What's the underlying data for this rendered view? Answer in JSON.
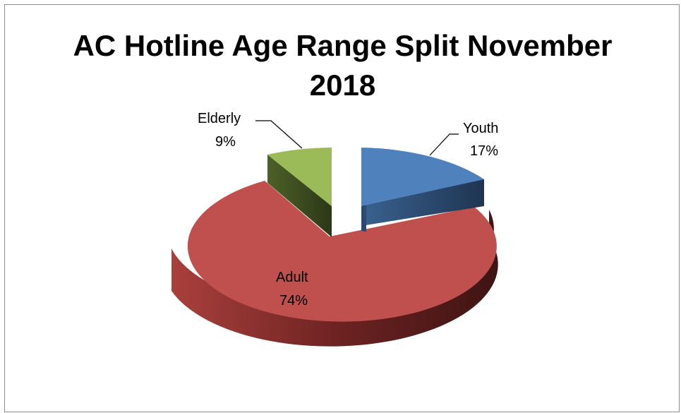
{
  "chart_data": {
    "type": "pie",
    "style": "3d-exploded",
    "title": "AC Hotline Age Range Split November 2018",
    "title_lines": [
      "AC Hotline Age Range Split November",
      "2018"
    ],
    "slices": [
      {
        "label": "Youth",
        "pct_label": "17%",
        "value": 17,
        "color": "#4f81bd",
        "side_color": "#2b4a72"
      },
      {
        "label": "Adult",
        "pct_label": "74%",
        "value": 74,
        "color": "#c0504d",
        "side_color": "#6e2322"
      },
      {
        "label": "Elderly",
        "pct_label": "9%",
        "value": 9,
        "color": "#9bbb59",
        "side_color": "#3d4d20"
      }
    ],
    "legend": "none",
    "data_labels": "category-name and percentage"
  }
}
